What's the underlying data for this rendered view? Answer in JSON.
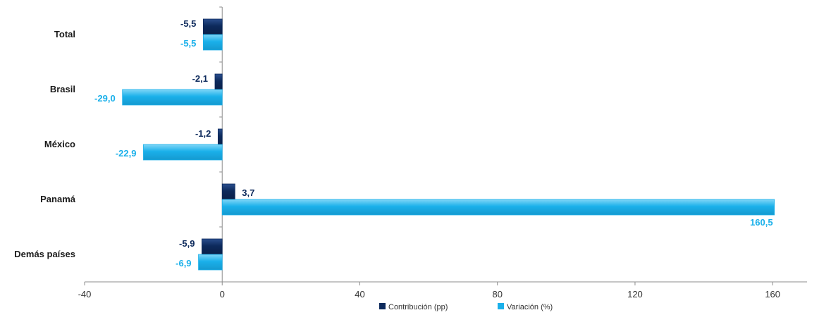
{
  "chart_data": {
    "type": "bar",
    "orientation": "horizontal",
    "categories": [
      "Total",
      "Brasil",
      "México",
      "Panamá",
      "Demás países"
    ],
    "series": [
      {
        "name": "Contribución (pp)",
        "color": "#0d2a5c",
        "values": [
          -5.5,
          -2.1,
          -1.2,
          3.7,
          -5.9
        ],
        "labels": [
          "-5,5",
          "-2,1",
          "-1,2",
          "3,7",
          "-5,9"
        ]
      },
      {
        "name": "Variación (%)",
        "color": "#1ab0ea",
        "values": [
          -5.5,
          -29.0,
          -22.9,
          160.5,
          -6.9
        ],
        "labels": [
          "-5,5",
          "-29,0",
          "-22,9",
          "160,5",
          "-6,9"
        ]
      }
    ],
    "xlim": [
      -40,
      170
    ],
    "xticks": [
      -40,
      0,
      40,
      80,
      120,
      160
    ],
    "xtick_labels": [
      "-40",
      "0",
      "40",
      "80",
      "120",
      "160"
    ],
    "grid": false,
    "legend_position": "bottom-center"
  }
}
